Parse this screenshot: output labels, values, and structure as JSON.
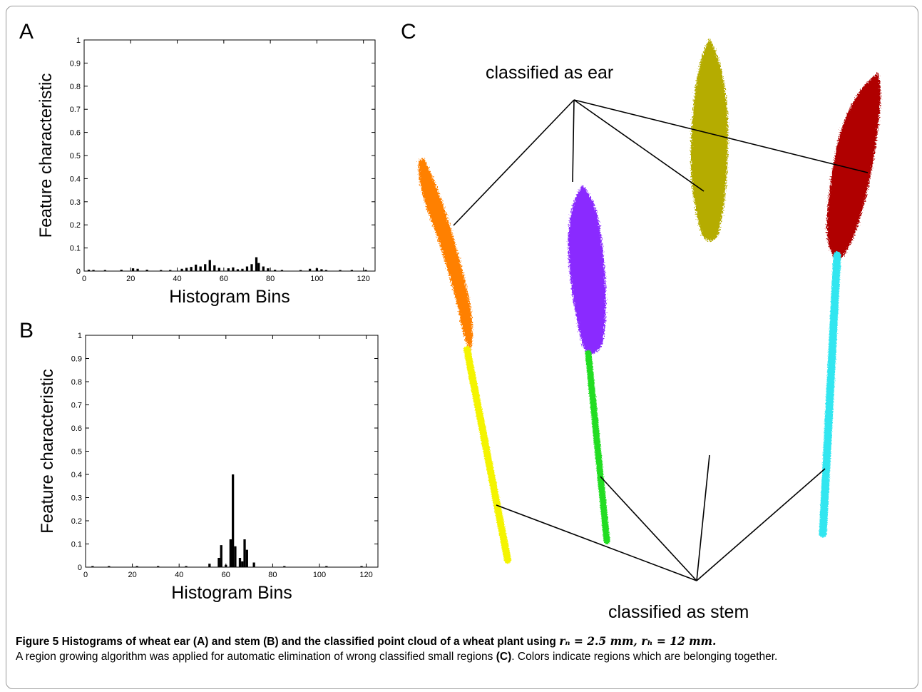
{
  "panels": {
    "a_letter": "A",
    "b_letter": "B",
    "c_letter": "C"
  },
  "chart_data": [
    {
      "type": "bar",
      "panel": "A",
      "xlabel": "Histogram Bins",
      "ylabel": "Feature characteristic",
      "xlim": [
        0,
        125
      ],
      "ylim": [
        0,
        1
      ],
      "xticks": [
        0,
        20,
        40,
        60,
        80,
        100,
        120
      ],
      "yticks": [
        0,
        0.1,
        0.2,
        0.3,
        0.4,
        0.5,
        0.6,
        0.7,
        0.8,
        0.9,
        1
      ],
      "bars": [
        {
          "x": 2,
          "y": 0.006
        },
        {
          "x": 4,
          "y": 0.005
        },
        {
          "x": 9,
          "y": 0.004
        },
        {
          "x": 16,
          "y": 0.006
        },
        {
          "x": 21,
          "y": 0.012
        },
        {
          "x": 23,
          "y": 0.01
        },
        {
          "x": 27,
          "y": 0.006
        },
        {
          "x": 33,
          "y": 0.004
        },
        {
          "x": 37,
          "y": 0.005
        },
        {
          "x": 42,
          "y": 0.01
        },
        {
          "x": 44,
          "y": 0.014
        },
        {
          "x": 46,
          "y": 0.018
        },
        {
          "x": 48,
          "y": 0.028
        },
        {
          "x": 50,
          "y": 0.02
        },
        {
          "x": 52,
          "y": 0.03
        },
        {
          "x": 54,
          "y": 0.048
        },
        {
          "x": 56,
          "y": 0.025
        },
        {
          "x": 58,
          "y": 0.014
        },
        {
          "x": 62,
          "y": 0.012
        },
        {
          "x": 64,
          "y": 0.016
        },
        {
          "x": 66,
          "y": 0.008
        },
        {
          "x": 68,
          "y": 0.01
        },
        {
          "x": 70,
          "y": 0.02
        },
        {
          "x": 72,
          "y": 0.03
        },
        {
          "x": 74,
          "y": 0.06
        },
        {
          "x": 75,
          "y": 0.035
        },
        {
          "x": 77,
          "y": 0.02
        },
        {
          "x": 79,
          "y": 0.012
        },
        {
          "x": 82,
          "y": 0.006
        },
        {
          "x": 85,
          "y": 0.005
        },
        {
          "x": 93,
          "y": 0.004
        },
        {
          "x": 97,
          "y": 0.01
        },
        {
          "x": 100,
          "y": 0.012
        },
        {
          "x": 102,
          "y": 0.008
        },
        {
          "x": 104,
          "y": 0.004
        },
        {
          "x": 110,
          "y": 0.004
        },
        {
          "x": 115,
          "y": 0.005
        },
        {
          "x": 121,
          "y": 0.005
        }
      ]
    },
    {
      "type": "bar",
      "panel": "B",
      "xlabel": "Histogram Bins",
      "ylabel": "Feature characteristic",
      "xlim": [
        0,
        125
      ],
      "ylim": [
        0,
        1
      ],
      "xticks": [
        0,
        20,
        40,
        60,
        80,
        100,
        120
      ],
      "yticks": [
        0,
        0.1,
        0.2,
        0.3,
        0.4,
        0.5,
        0.6,
        0.7,
        0.8,
        0.9,
        1
      ],
      "bars": [
        {
          "x": 3,
          "y": 0.003
        },
        {
          "x": 10,
          "y": 0.002
        },
        {
          "x": 22,
          "y": 0.002
        },
        {
          "x": 31,
          "y": 0.002
        },
        {
          "x": 43,
          "y": 0.004
        },
        {
          "x": 53,
          "y": 0.015
        },
        {
          "x": 57,
          "y": 0.04
        },
        {
          "x": 58,
          "y": 0.095
        },
        {
          "x": 60,
          "y": 0.01
        },
        {
          "x": 62,
          "y": 0.12
        },
        {
          "x": 63,
          "y": 0.4
        },
        {
          "x": 64,
          "y": 0.09
        },
        {
          "x": 66,
          "y": 0.04
        },
        {
          "x": 67,
          "y": 0.025
        },
        {
          "x": 68,
          "y": 0.12
        },
        {
          "x": 69,
          "y": 0.075
        },
        {
          "x": 72,
          "y": 0.02
        },
        {
          "x": 85,
          "y": 0.002
        },
        {
          "x": 103,
          "y": 0.002
        },
        {
          "x": 118,
          "y": 0.002
        }
      ]
    }
  ],
  "panel_c": {
    "ear_label": "classified as ear",
    "stem_label": "classified as stem",
    "colors": {
      "ear1": "#ff8000",
      "stem1": "#f4f400",
      "ear2": "#8a2cff",
      "stem2": "#22dd22",
      "ear3": "#b5ac00",
      "stem3": "#1010e0",
      "ear4": "#b00000",
      "stem4": "#33e6f0"
    }
  },
  "caption": {
    "lead": "Figure 5 Histograms of wheat ear (A) and stem (B) and the classified point cloud of a wheat plant using",
    "math": "rₙ = 2.5 mm, rₕ = 12 mm.",
    "body_1": "A region growing algorithm was applied for automatic elimination of wrong classified small regions",
    "body_ref": "(C)",
    "body_2": ". Colors indicate regions which are belonging together."
  }
}
